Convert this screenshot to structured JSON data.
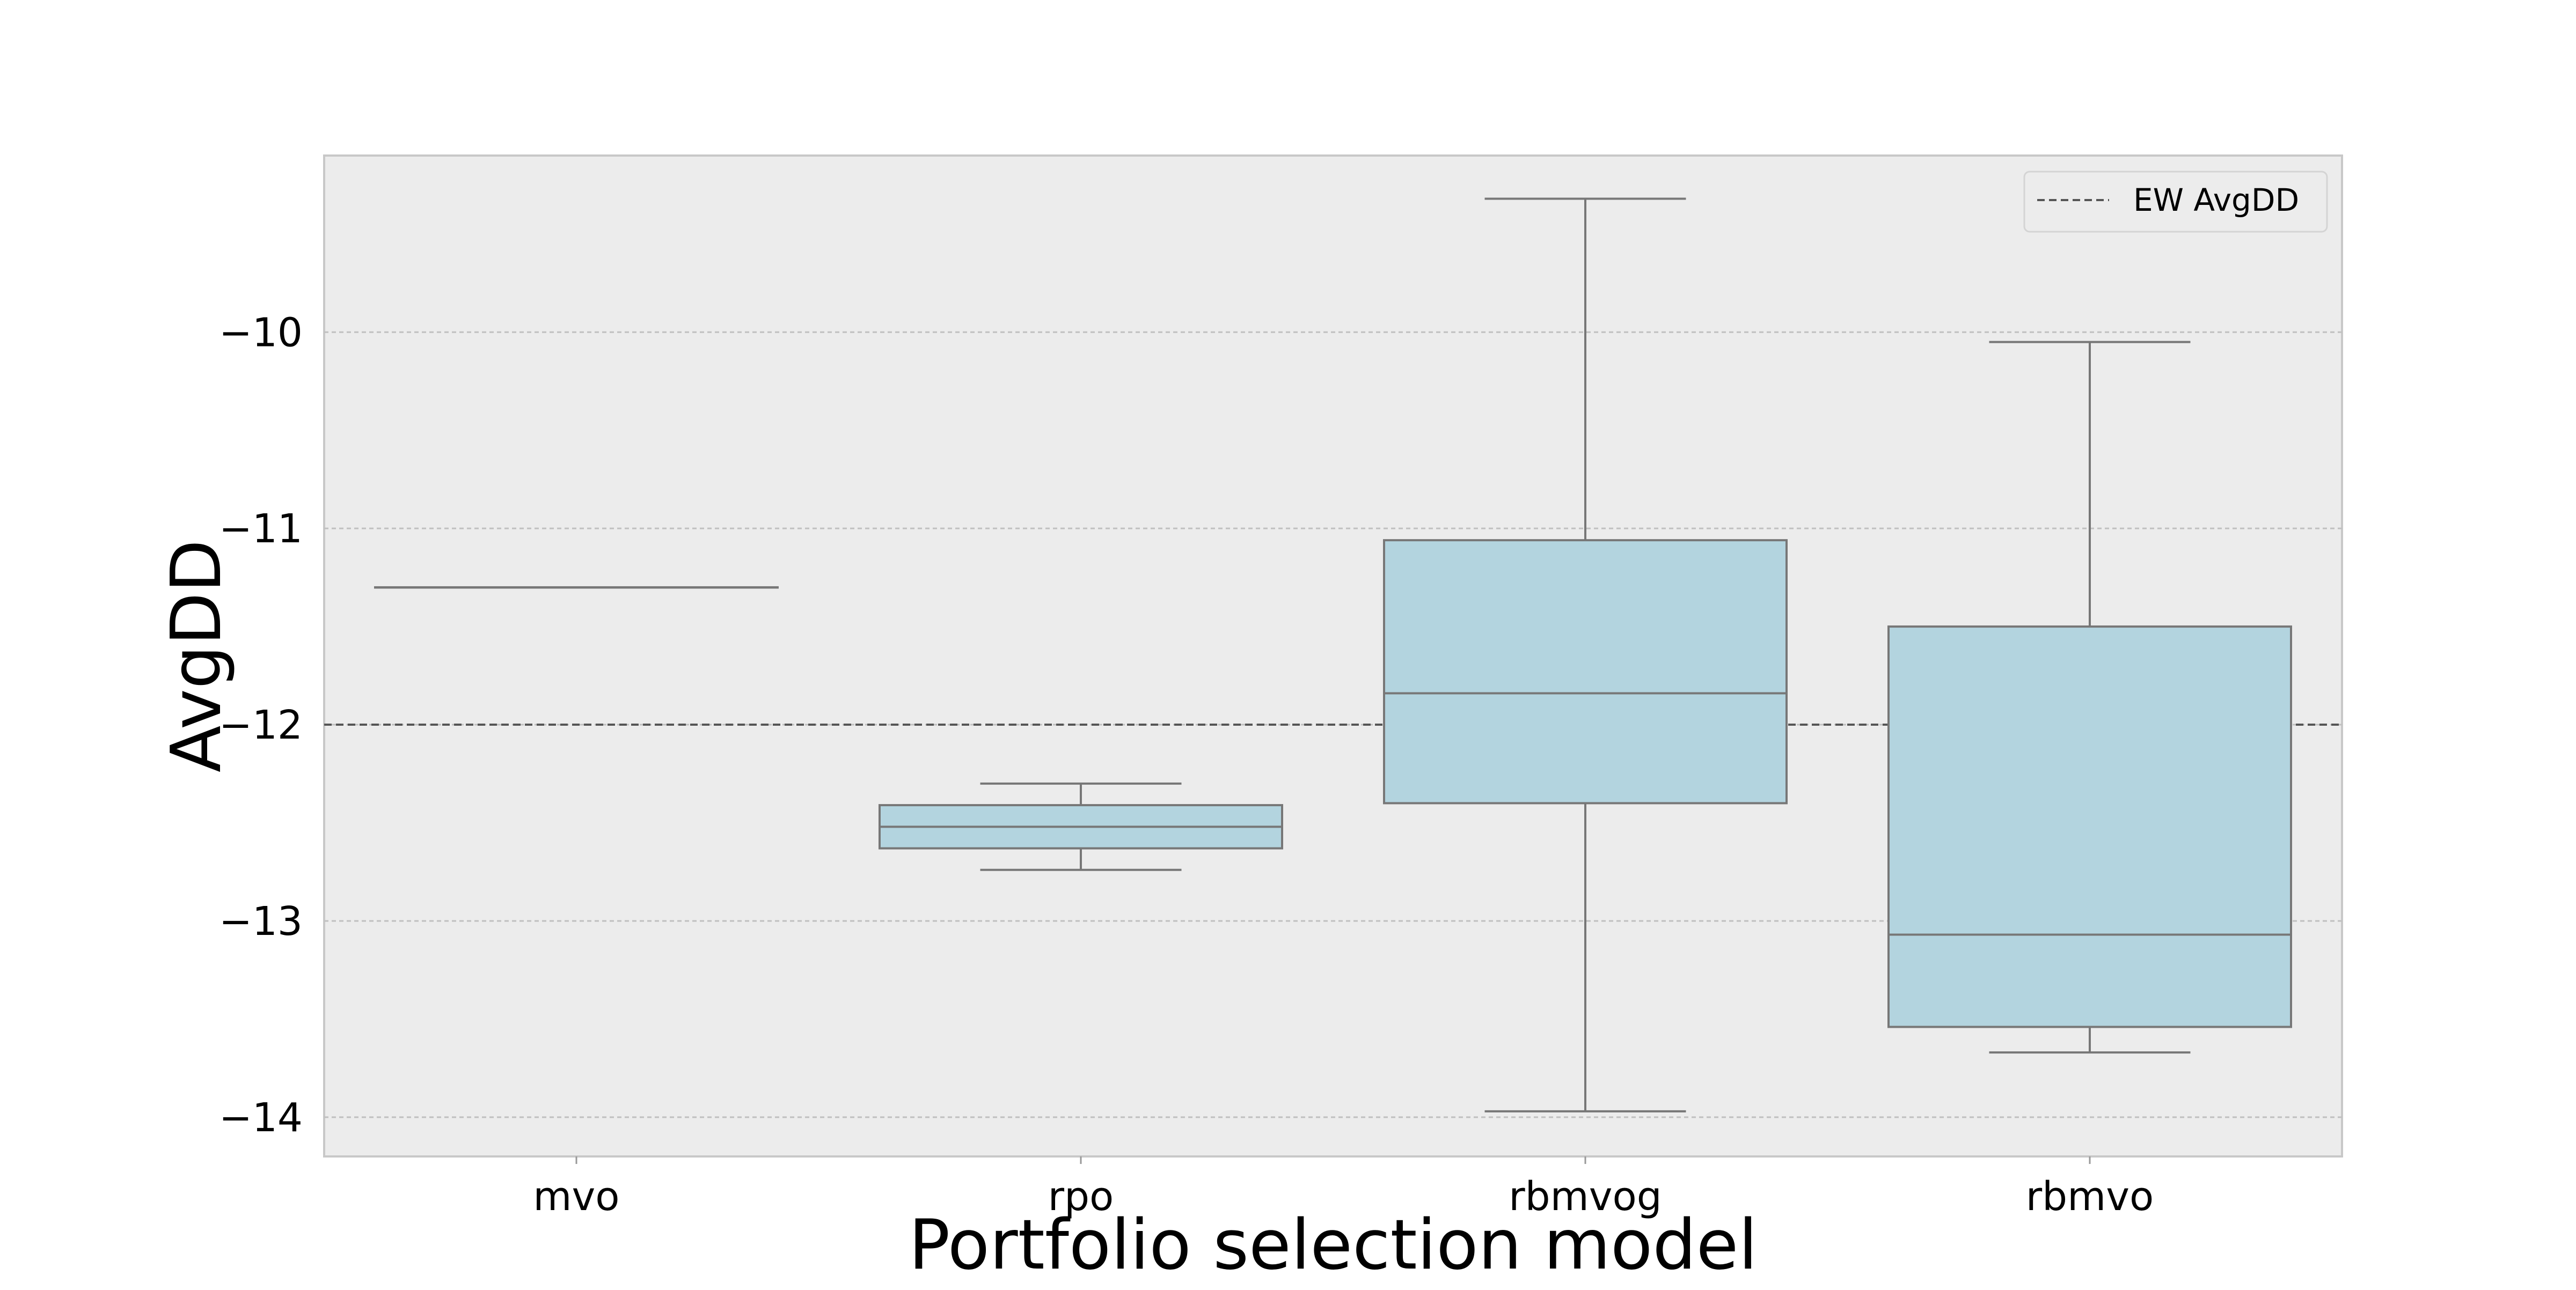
{
  "chart_data": {
    "type": "boxplot",
    "xlabel": "Portfolio selection model",
    "ylabel": "AvgDD",
    "categories": [
      "mvo",
      "rpo",
      "rbmvog",
      "rbmvo"
    ],
    "boxes": [
      {
        "category": "mvo",
        "whisker_low": -11.3,
        "q1": -11.3,
        "median": -11.3,
        "q3": -11.3,
        "whisker_high": -11.3
      },
      {
        "category": "rpo",
        "whisker_low": -12.74,
        "q1": -12.63,
        "median": -12.52,
        "q3": -12.41,
        "whisker_high": -12.3
      },
      {
        "category": "rbmvog",
        "whisker_low": -13.97,
        "q1": -12.4,
        "median": -11.84,
        "q3": -11.06,
        "whisker_high": -9.32
      },
      {
        "category": "rbmvo",
        "whisker_low": -13.67,
        "q1": -13.54,
        "median": -13.07,
        "q3": -11.5,
        "whisker_high": -10.05
      }
    ],
    "reference_line": {
      "label": "EW AvgDD",
      "value": -12.0,
      "style": "dashed"
    },
    "yticks": [
      -14,
      -13,
      -12,
      -11,
      -10
    ],
    "ytick_labels": [
      "−14",
      "−13",
      "−12",
      "−11",
      "−10"
    ],
    "ylim": [
      -14.2,
      -9.1
    ],
    "grid": "y",
    "legend_position": "top-right",
    "colors": {
      "box_fill": "#b3d4df",
      "box_edge": "#777777",
      "plot_background": "#ececec",
      "grid": "#c0c0c0",
      "reference_line": "#555555"
    }
  }
}
